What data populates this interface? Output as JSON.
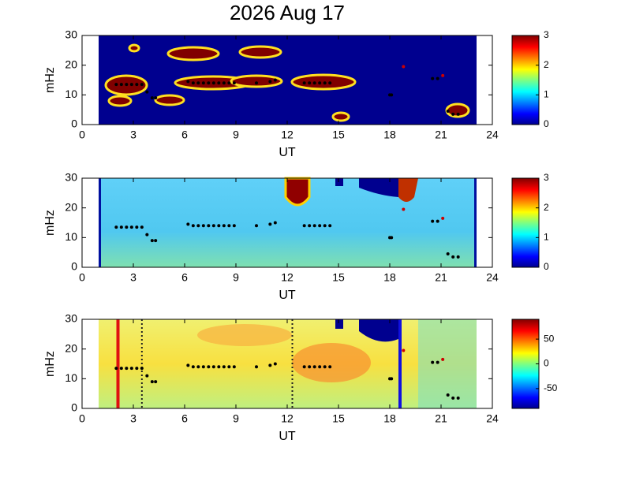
{
  "title": "2026 Aug 17",
  "chart_data": [
    {
      "type": "spectrogram",
      "xlabel": "UT",
      "ylabel": "mHz",
      "xlim": [
        0,
        24
      ],
      "xticks": [
        0,
        3,
        6,
        9,
        12,
        15,
        18,
        21,
        24
      ],
      "ylim": [
        0,
        30
      ],
      "yticks": [
        0,
        10,
        20,
        30
      ],
      "clim": [
        0,
        3
      ],
      "cticks": [
        0,
        1,
        2,
        3
      ],
      "series": [
        {
          "color": "#000000",
          "x": [
            2,
            2.3,
            2.6,
            2.9,
            3.2,
            3.5,
            3.8,
            4.1,
            4.3,
            6.2,
            6.5,
            6.8,
            7.1,
            7.4,
            7.7,
            8,
            8.3,
            8.6,
            8.9,
            10.2,
            11,
            11.3,
            13,
            13.3,
            13.6,
            13.9,
            14.2,
            14.5,
            18,
            18.1,
            20.5,
            20.8,
            21.4,
            21.7,
            22
          ],
          "values": [
            13.5,
            13.5,
            13.5,
            13.5,
            13.5,
            13.5,
            11,
            9,
            9,
            14.5,
            14,
            14,
            14,
            14,
            14,
            14,
            14,
            14,
            14,
            14,
            14.5,
            15,
            14,
            14,
            14,
            14,
            14,
            14,
            10,
            10,
            15.5,
            15.5,
            4.5,
            3.5,
            3.5
          ]
        },
        {
          "color": "#cc0000",
          "x": [
            18.8,
            21.1
          ],
          "values": [
            19.5,
            16.5
          ]
        }
      ]
    },
    {
      "type": "spectrogram",
      "xlabel": "UT",
      "ylabel": "mHz",
      "xlim": [
        0,
        24
      ],
      "xticks": [
        0,
        3,
        6,
        9,
        12,
        15,
        18,
        21,
        24
      ],
      "ylim": [
        0,
        30
      ],
      "yticks": [
        0,
        10,
        20,
        30
      ],
      "clim": [
        0,
        3
      ],
      "cticks": [
        0,
        1,
        2,
        3
      ],
      "series": [
        {
          "color": "#000000",
          "x": [
            2,
            2.3,
            2.6,
            2.9,
            3.2,
            3.5,
            3.8,
            4.1,
            4.3,
            6.2,
            6.5,
            6.8,
            7.1,
            7.4,
            7.7,
            8,
            8.3,
            8.6,
            8.9,
            10.2,
            11,
            11.3,
            13,
            13.3,
            13.6,
            13.9,
            14.2,
            14.5,
            18,
            18.1,
            20.5,
            20.8,
            21.4,
            21.7,
            22
          ],
          "values": [
            13.5,
            13.5,
            13.5,
            13.5,
            13.5,
            13.5,
            11,
            9,
            9,
            14.5,
            14,
            14,
            14,
            14,
            14,
            14,
            14,
            14,
            14,
            14,
            14.5,
            15,
            14,
            14,
            14,
            14,
            14,
            14,
            10,
            10,
            15.5,
            15.5,
            4.5,
            3.5,
            3.5
          ]
        },
        {
          "color": "#cc0000",
          "x": [
            18.8,
            21.1
          ],
          "values": [
            19.5,
            16.5
          ]
        }
      ]
    },
    {
      "type": "spectrogram",
      "xlabel": "UT",
      "ylabel": "mHz",
      "xlim": [
        0,
        24
      ],
      "xticks": [
        0,
        3,
        6,
        9,
        12,
        15,
        18,
        21,
        24
      ],
      "ylim": [
        0,
        30
      ],
      "yticks": [
        0,
        10,
        20,
        30
      ],
      "clim": [
        -90,
        90
      ],
      "cticks": [
        -50,
        0,
        50
      ],
      "vlines": [
        {
          "x": 2.1,
          "color": "#e01010",
          "style": "solid"
        },
        {
          "x": 3.5,
          "color": "#202020",
          "style": "dotted"
        },
        {
          "x": 12.3,
          "color": "#202020",
          "style": "dotted"
        },
        {
          "x": 18.6,
          "color": "#1010e0",
          "style": "solid"
        }
      ],
      "series": [
        {
          "color": "#000000",
          "x": [
            2,
            2.3,
            2.6,
            2.9,
            3.2,
            3.5,
            3.8,
            4.1,
            4.3,
            6.2,
            6.5,
            6.8,
            7.1,
            7.4,
            7.7,
            8,
            8.3,
            8.6,
            8.9,
            10.2,
            11,
            11.3,
            13,
            13.3,
            13.6,
            13.9,
            14.2,
            14.5,
            18,
            18.1,
            20.5,
            20.8,
            21.4,
            21.7,
            22
          ],
          "values": [
            13.5,
            13.5,
            13.5,
            13.5,
            13.5,
            13.5,
            11,
            9,
            9,
            14.5,
            14,
            14,
            14,
            14,
            14,
            14,
            14,
            14,
            14,
            14,
            14.5,
            15,
            14,
            14,
            14,
            14,
            14,
            14,
            10,
            10,
            15.5,
            15.5,
            4.5,
            3.5,
            3.5
          ]
        },
        {
          "color": "#cc0000",
          "x": [
            18.8,
            21.1
          ],
          "values": [
            19.5,
            16.5
          ]
        }
      ]
    }
  ]
}
